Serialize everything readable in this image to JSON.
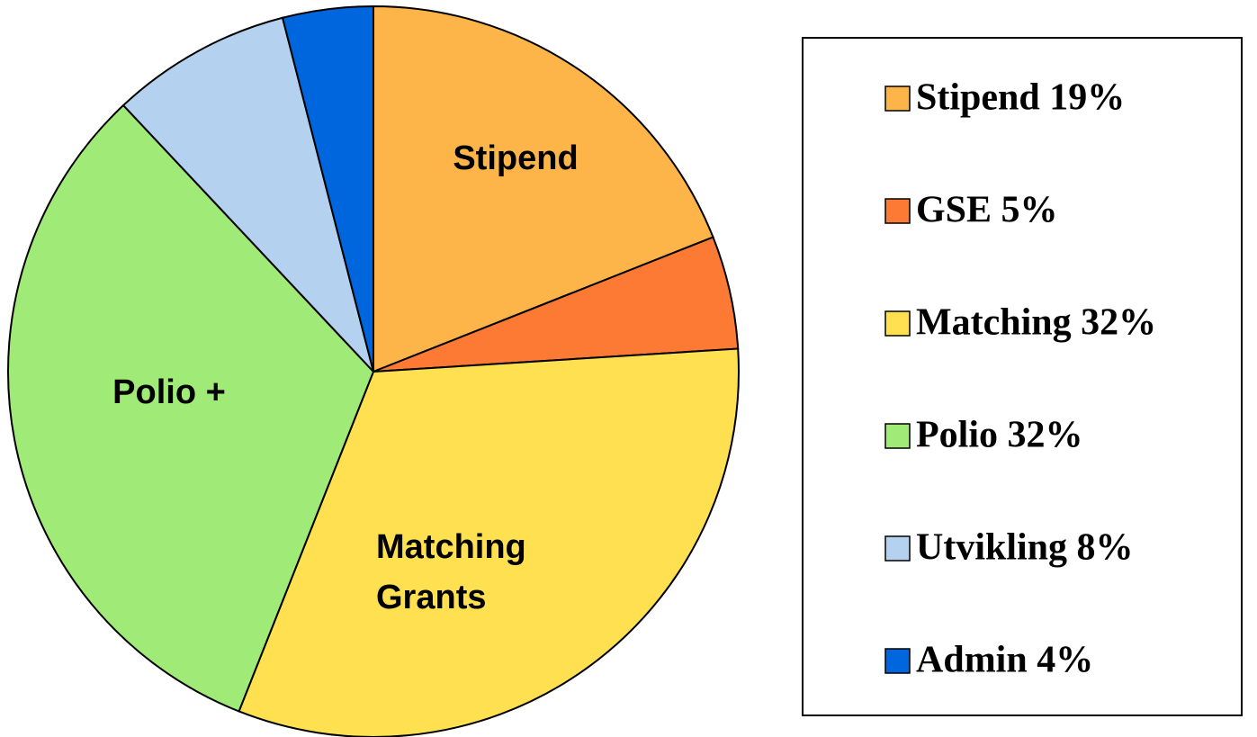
{
  "chart_data": {
    "type": "pie",
    "categories": [
      "Stipend 19%",
      "GSE 5%",
      "Matching 32%",
      "Polio 32%",
      "Utvikling 8%",
      "Admin 4%"
    ],
    "values": [
      19,
      5,
      32,
      32,
      8,
      4
    ],
    "colors": [
      "#FDB54A",
      "#FD7A35",
      "#FEE050",
      "#A0EB78",
      "#B4D2F0",
      "#0066DD"
    ],
    "slice_labels": [
      "Stipend",
      null,
      [
        "Matching",
        "Grants"
      ],
      "Polio +",
      null,
      null
    ],
    "legend": "right"
  }
}
